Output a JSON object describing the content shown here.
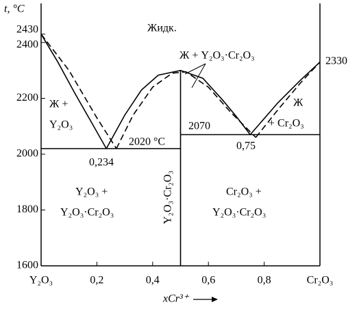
{
  "chart_data": {
    "type": "line",
    "y_label": "t, °C",
    "x_label": "xCr³⁺",
    "xlim": [
      0,
      1
    ],
    "ylim": [
      1600,
      2540
    ],
    "xticks": [
      {
        "value": 0,
        "label": "Y₂O₃"
      },
      {
        "value": 0.2,
        "label": "0,2"
      },
      {
        "value": 0.4,
        "label": "0,4"
      },
      {
        "value": 0.6,
        "label": "0,6"
      },
      {
        "value": 0.8,
        "label": "0,8"
      },
      {
        "value": 1,
        "label": "Cr₂O₃"
      }
    ],
    "yticks": [
      1600,
      1800,
      2000,
      2200,
      2400,
      2430
    ],
    "color": "#000000",
    "series": [
      {
        "x": [
          0,
          0.06,
          0.12,
          0.18,
          0.234
        ],
        "values": [
          2430,
          2330,
          2220,
          2115,
          2020
        ],
        "dashed": false
      },
      {
        "x": [
          0.234,
          0.3,
          0.36,
          0.42,
          0.5,
          0.58,
          0.65,
          0.7,
          0.75
        ],
        "values": [
          2020,
          2140,
          2230,
          2283,
          2300,
          2272,
          2195,
          2135,
          2070
        ],
        "dashed": false
      },
      {
        "x": [
          0.75,
          0.85,
          0.93,
          1
        ],
        "values": [
          2070,
          2185,
          2265,
          2330
        ],
        "dashed": false
      },
      {
        "x": [
          0,
          0.1,
          0.2,
          0.27
        ],
        "values": [
          2430,
          2300,
          2130,
          2020
        ],
        "dashed": true
      },
      {
        "x": [
          0.27,
          0.33,
          0.4,
          0.47,
          0.52,
          0.6,
          0.68,
          0.77
        ],
        "values": [
          2020,
          2140,
          2240,
          2290,
          2295,
          2240,
          2150,
          2060
        ],
        "dashed": true
      },
      {
        "x": [
          0.77,
          0.85,
          0.93,
          1
        ],
        "values": [
          2060,
          2160,
          2255,
          2330
        ],
        "dashed": true
      },
      {
        "x": [
          0,
          0.5
        ],
        "values": [
          2020,
          2020
        ],
        "dashed": false
      },
      {
        "x": [
          0.5,
          1
        ],
        "values": [
          2070,
          2070
        ],
        "dashed": false
      },
      {
        "x": [
          0.5,
          0.5
        ],
        "values": [
          1600,
          2300
        ],
        "dashed": false
      }
    ],
    "annotations": [
      "Жидк.",
      "Ж + Y₂O₃·Cr₂O₃",
      "Ж +",
      "Y₂O₃",
      "Ж",
      "+ Cr₂O₃",
      "2020 °C",
      "2070",
      "0,234",
      "0,75",
      "2330",
      "Y₂O₃ +",
      "Y₂O₃·Cr₂O₃",
      "Cr₂O₃ +",
      "Y₂O₃·Cr₂O₃",
      "Y₂O₃·Cr₂O₃"
    ]
  }
}
